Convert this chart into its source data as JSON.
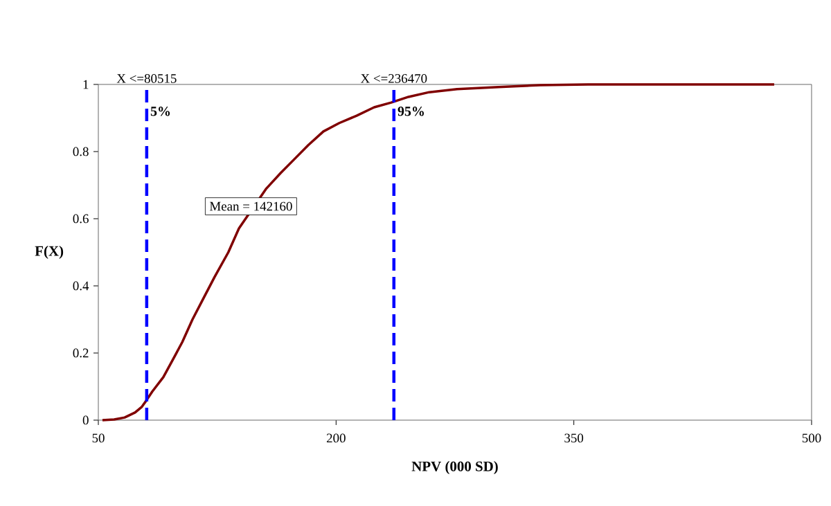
{
  "chart_data": {
    "type": "line",
    "xlabel": "NPV (000 SD)",
    "ylabel": "F(X)",
    "series": [
      {
        "color": "#800000",
        "x": [
          52.6,
          60,
          66.6,
          73.2,
          77.5,
          80.5,
          84,
          91,
          97,
          103,
          109.4,
          116,
          123.4,
          132,
          138.7,
          156,
          165,
          173.6,
          182.4,
          192,
          202,
          213,
          224,
          234.8,
          245.7,
          258.8,
          276.3,
          302.5,
          328.7,
          359,
          476.4
        ],
        "values": [
          0,
          0.002,
          0.008,
          0.023,
          0.04,
          0.06,
          0.085,
          0.128,
          0.18,
          0.233,
          0.3,
          0.36,
          0.427,
          0.5,
          0.571,
          0.69,
          0.736,
          0.777,
          0.819,
          0.86,
          0.885,
          0.907,
          0.932,
          0.946,
          0.963,
          0.977,
          0.986,
          0.992,
          0.998,
          1,
          1
        ]
      }
    ],
    "xlim": [
      50,
      500
    ],
    "ylim": [
      0,
      1
    ],
    "xticks": [
      50,
      200,
      350,
      500
    ],
    "yticks": [
      0,
      0.2,
      0.4,
      0.6,
      0.8,
      1
    ],
    "ref_lines": [
      {
        "axis": "x",
        "value": 80.515,
        "label": "X <=80515",
        "color": "#0000ff",
        "line_style": "dashed"
      },
      {
        "axis": "x",
        "value": 236.47,
        "label": "X <=236470",
        "color": "#0000ff",
        "line_style": "dashed"
      }
    ],
    "annotations": [
      {
        "text": "5%",
        "x": 80.515,
        "y": 0.92
      },
      {
        "text": "95%",
        "x": 236.47,
        "y": 0.92
      },
      "Mean = 142160"
    ]
  }
}
